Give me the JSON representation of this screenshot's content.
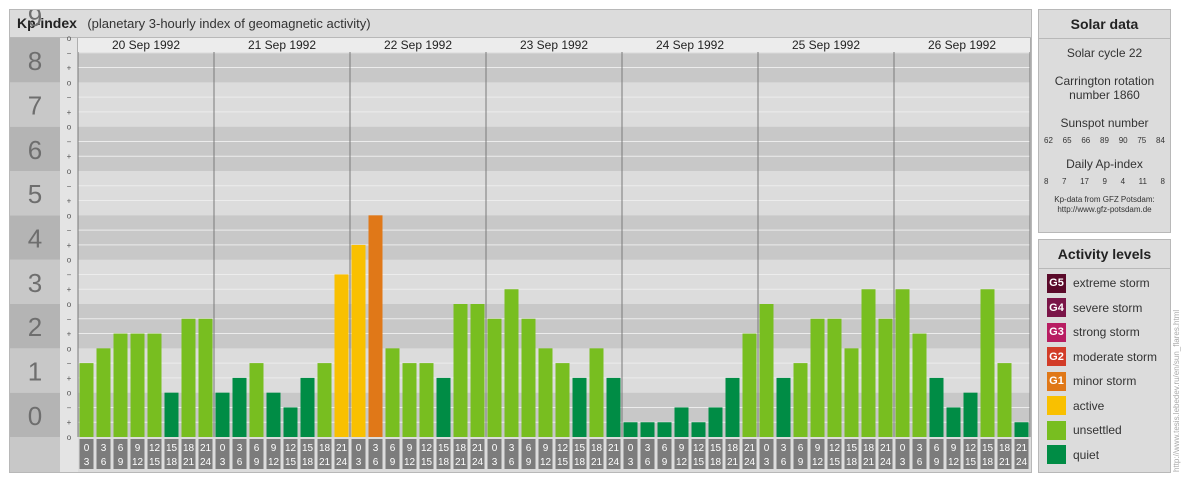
{
  "header": {
    "title": "Kp-index",
    "subtitle": "(planetary 3-hourly index of geomagnetic activity)"
  },
  "chart_data": {
    "type": "bar",
    "ylim": [
      0,
      9
    ],
    "y_ticks": [
      "0",
      "1",
      "2",
      "3",
      "4",
      "5",
      "6",
      "7",
      "8",
      "9"
    ],
    "minor_ticks": [
      "o",
      "+",
      "−",
      "o",
      "+",
      "−",
      "o",
      "+",
      "−",
      "o",
      "+",
      "−",
      "o",
      "+",
      "−",
      "o",
      "+",
      "−",
      "o",
      "+",
      "−",
      "o",
      "+",
      "−",
      "o",
      "+",
      "−",
      "o"
    ],
    "days": [
      "20 Sep 1992",
      "21 Sep 1992",
      "22 Sep 1992",
      "23 Sep 1992",
      "24 Sep 1992",
      "25 Sep 1992",
      "26 Sep 1992"
    ],
    "x_tick_top": [
      "0",
      "3",
      "6",
      "9",
      "12",
      "15",
      "18",
      "21"
    ],
    "x_tick_bottom": [
      "3",
      "6",
      "9",
      "12",
      "15",
      "18",
      "21",
      "24"
    ],
    "values": [
      1.667,
      2.0,
      2.333,
      2.333,
      2.333,
      1.0,
      2.667,
      2.667,
      1.0,
      1.333,
      1.667,
      1.0,
      0.667,
      1.333,
      1.667,
      3.667,
      4.333,
      5.0,
      2.0,
      1.667,
      1.667,
      1.333,
      3.0,
      3.0,
      2.667,
      3.333,
      2.667,
      2.0,
      1.667,
      1.333,
      2.0,
      1.333,
      0.333,
      0.333,
      0.333,
      0.667,
      0.333,
      0.667,
      1.333,
      2.333,
      3.0,
      1.333,
      1.667,
      2.667,
      2.667,
      2.0,
      3.333,
      2.667,
      3.333,
      2.333,
      1.333,
      0.667,
      1.0,
      3.333,
      1.667,
      0.333
    ],
    "grid": true
  },
  "solar": {
    "title": "Solar data",
    "cycle": "Solar cycle 22",
    "carrington_line1": "Carrington rotation",
    "carrington_line2": "number 1860",
    "sunspot_label": "Sunspot number",
    "sunspot_values": [
      "62",
      "65",
      "66",
      "89",
      "90",
      "75",
      "84"
    ],
    "ap_label": "Daily Ap-index",
    "ap_values": [
      "8",
      "7",
      "17",
      "9",
      "4",
      "11",
      "8"
    ],
    "credit_line1": "Kp-data from GFZ Potsdam:",
    "credit_line2": "http://www.gfz-potsdam.de"
  },
  "activity": {
    "title": "Activity levels",
    "levels": [
      {
        "code": "G5",
        "label": "extreme storm",
        "color": "#5a0a2a"
      },
      {
        "code": "G4",
        "label": "severe storm",
        "color": "#7a1548"
      },
      {
        "code": "G3",
        "label": "strong storm",
        "color": "#b81d62"
      },
      {
        "code": "G2",
        "label": "moderate storm",
        "color": "#d23c28"
      },
      {
        "code": "G1",
        "label": "minor storm",
        "color": "#e07818"
      },
      {
        "code": "",
        "label": "active",
        "color": "#f9c000"
      },
      {
        "code": "",
        "label": "unsettled",
        "color": "#78be20"
      },
      {
        "code": "",
        "label": "quiet",
        "color": "#008c45"
      }
    ]
  },
  "watermark": "http://www.tesis.lebedev.ru/en/sun_flares.html"
}
